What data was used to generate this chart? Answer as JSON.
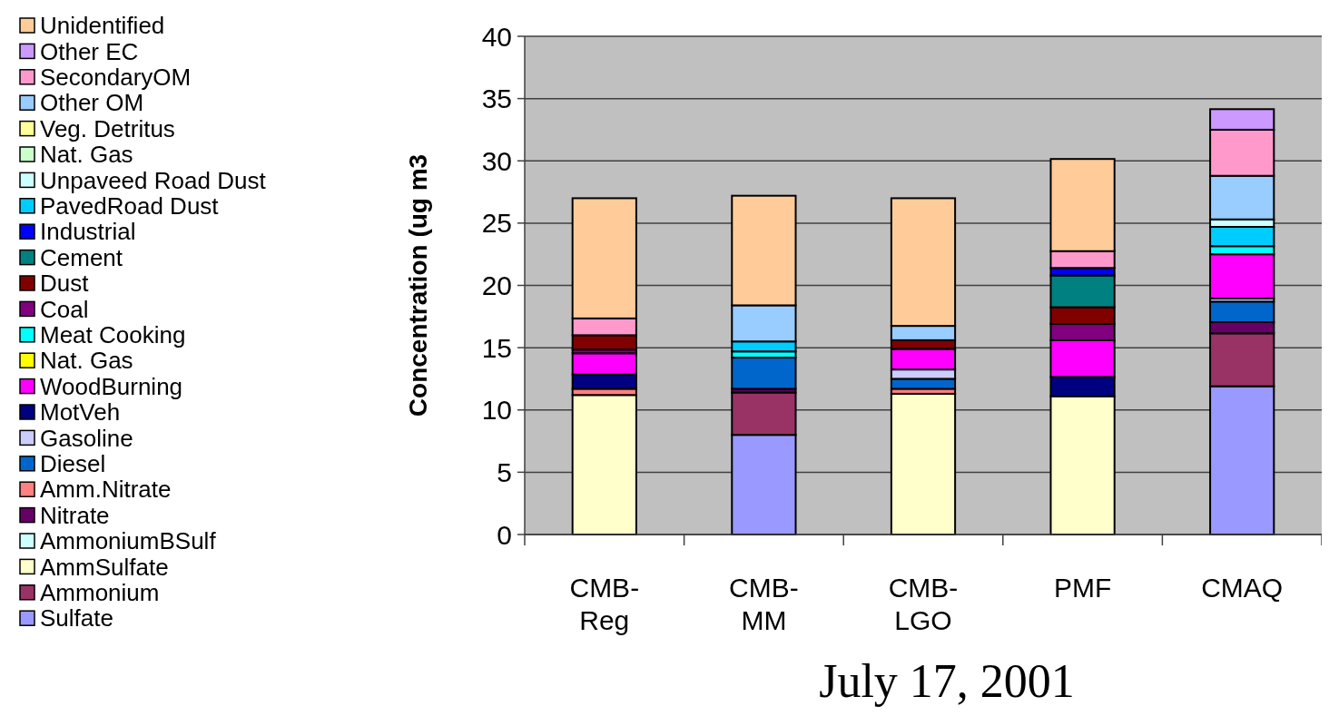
{
  "chart_data": {
    "type": "bar",
    "stacked": true,
    "title": "July 17, 2001",
    "ylabel": "Concentration (ug m3",
    "categories": [
      "CMB-Reg",
      "CMB-MM",
      "CMB-LGO",
      "PMF",
      "CMAQ"
    ],
    "ylim": [
      0,
      40
    ],
    "yticks": [
      0,
      5,
      10,
      15,
      20,
      25,
      30,
      35,
      40
    ],
    "grid": "y",
    "legend": "left",
    "series": [
      {
        "name": "Sulfate",
        "color": "#9999ff",
        "values": [
          null,
          8.0,
          null,
          null,
          11.9
        ]
      },
      {
        "name": "Ammonium",
        "color": "#993366",
        "values": [
          null,
          3.4,
          null,
          null,
          4.25
        ]
      },
      {
        "name": "AmmSulfate",
        "color": "#ffffcc",
        "values": [
          11.2,
          null,
          11.3,
          11.1,
          null
        ]
      },
      {
        "name": "AmmoniumBSulf",
        "color": "#ccffff",
        "values": [
          null,
          null,
          null,
          null,
          null
        ]
      },
      {
        "name": "Nitrate",
        "color": "#660066",
        "values": [
          null,
          0.3,
          null,
          null,
          0.9
        ]
      },
      {
        "name": "Amm.Nitrate",
        "color": "#ff8080",
        "values": [
          0.5,
          null,
          0.4,
          null,
          null
        ]
      },
      {
        "name": "Diesel",
        "color": "#0066cc",
        "values": [
          null,
          2.5,
          0.8,
          null,
          1.65
        ]
      },
      {
        "name": "Gasoline",
        "color": "#ccccff",
        "values": [
          null,
          null,
          0.75,
          null,
          0.25
        ]
      },
      {
        "name": "MotVeh",
        "color": "#000080",
        "values": [
          1.15,
          null,
          null,
          1.55,
          null
        ]
      },
      {
        "name": "WoodBurning",
        "color": "#ff00ff",
        "values": [
          1.7,
          null,
          1.65,
          2.95,
          3.55
        ]
      },
      {
        "name": "Nat. Gas",
        "color": "#ffff00",
        "values": [
          null,
          null,
          null,
          null,
          null
        ]
      },
      {
        "name": "Meat Cooking",
        "color": "#00ffff",
        "values": [
          null,
          0.5,
          null,
          null,
          0.65
        ]
      },
      {
        "name": "Coal",
        "color": "#800080",
        "values": [
          0.3,
          null,
          null,
          1.3,
          null
        ]
      },
      {
        "name": "Dust",
        "color": "#800000",
        "values": [
          1.15,
          null,
          0.7,
          1.35,
          null
        ]
      },
      {
        "name": "Cement",
        "color": "#008080",
        "values": [
          null,
          null,
          null,
          2.55,
          null
        ]
      },
      {
        "name": "Industrial",
        "color": "#0000ff",
        "values": [
          null,
          null,
          null,
          0.6,
          null
        ]
      },
      {
        "name": "PavedRoad Dust",
        "color": "#00ccff",
        "values": [
          null,
          0.8,
          null,
          null,
          1.55
        ]
      },
      {
        "name": "Unpaveed Road Dust",
        "color": "#ccffff",
        "values": [
          null,
          null,
          null,
          null,
          0.6
        ]
      },
      {
        "name": "Nat. Gas",
        "color": "#ccffcc",
        "values": [
          null,
          null,
          null,
          null,
          null
        ]
      },
      {
        "name": "Veg. Detritus",
        "color": "#ffff99",
        "values": [
          null,
          null,
          null,
          null,
          null
        ]
      },
      {
        "name": "Other OM",
        "color": "#99ccff",
        "values": [
          null,
          2.9,
          1.15,
          null,
          3.5
        ]
      },
      {
        "name": "SecondaryOM",
        "color": "#ff99cc",
        "values": [
          1.35,
          null,
          null,
          1.35,
          3.7
        ]
      },
      {
        "name": "Other EC",
        "color": "#cc99ff",
        "values": [
          null,
          null,
          null,
          null,
          1.65
        ]
      },
      {
        "name": "Unidentified",
        "color": "#ffcc99",
        "values": [
          9.65,
          8.8,
          10.25,
          7.4,
          null
        ]
      }
    ]
  }
}
